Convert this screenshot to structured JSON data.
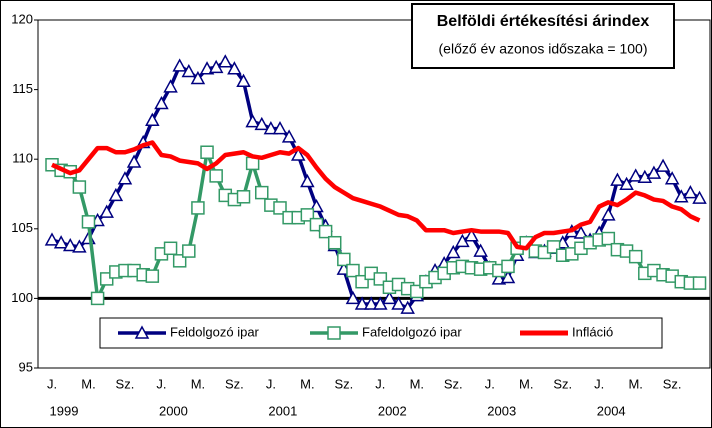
{
  "chart_data": {
    "type": "line",
    "title": "Belföldi értékesítési árindex",
    "subtitle": "(előző év azonos időszaka = 100)",
    "categories": [
      "J.",
      null,
      null,
      null,
      "M.",
      null,
      null,
      null,
      "Sz.",
      null,
      null,
      null,
      "J.",
      null,
      null,
      null,
      "M.",
      null,
      null,
      null,
      "Sz.",
      null,
      null,
      null,
      "J.",
      null,
      null,
      null,
      "M.",
      null,
      null,
      null,
      "Sz.",
      null,
      null,
      null,
      "J.",
      null,
      null,
      null,
      "M.",
      null,
      null,
      null,
      "Sz.",
      null,
      null,
      null,
      "J.",
      null,
      null,
      null,
      "M.",
      null,
      null,
      null,
      "Sz.",
      null,
      null,
      null,
      "J.",
      null,
      null,
      null,
      "M.",
      null,
      null,
      null,
      "Sz.",
      null,
      null,
      null
    ],
    "years": [
      "1999",
      "2000",
      "2001",
      "2002",
      "2003",
      "2004"
    ],
    "ylim": [
      95,
      120
    ],
    "yticks": [
      95,
      100,
      105,
      110,
      115,
      120
    ],
    "reference_line": 100,
    "series": [
      {
        "name": "Feldolgozó ipar",
        "color": "#000080",
        "marker": "triangle",
        "values": [
          104.2,
          104.0,
          103.8,
          103.7,
          104.3,
          105.6,
          106.2,
          107.4,
          108.6,
          109.8,
          111.2,
          112.8,
          114.0,
          115.2,
          116.7,
          116.3,
          115.8,
          116.5,
          116.6,
          117.0,
          116.5,
          115.6,
          112.7,
          112.5,
          112.2,
          112.2,
          111.6,
          110.3,
          108.4,
          106.6,
          105.2,
          103.8,
          102.1,
          100.0,
          99.6,
          99.6,
          99.6,
          100.0,
          99.6,
          99.3,
          100.2,
          101.2,
          102.0,
          102.5,
          103.3,
          104.1,
          104.5,
          103.4,
          102.2,
          101.4,
          101.5,
          103.1,
          104.0,
          103.3,
          103.4,
          103.6,
          104.0,
          104.8,
          104.7,
          104.2,
          104.7,
          106.0,
          108.5,
          108.2,
          108.8,
          108.7,
          109.0,
          109.5,
          108.6,
          107.3,
          107.6,
          107.2
        ]
      },
      {
        "name": "Fafeldolgozó ipar",
        "color": "#339966",
        "marker": "square",
        "values": [
          109.6,
          109.2,
          109.1,
          108.0,
          105.5,
          100.0,
          101.4,
          101.9,
          102.0,
          102.0,
          101.7,
          101.6,
          103.2,
          103.6,
          102.7,
          103.4,
          106.5,
          110.5,
          108.8,
          107.4,
          107.1,
          107.3,
          109.7,
          107.6,
          106.7,
          106.5,
          105.8,
          105.8,
          106.0,
          105.3,
          104.8,
          104.0,
          102.8,
          102.0,
          101.2,
          101.8,
          101.4,
          100.8,
          101.0,
          100.7,
          100.5,
          101.2,
          101.5,
          101.8,
          102.2,
          102.3,
          102.2,
          102.1,
          102.2,
          102.0,
          102.3,
          103.6,
          104.0,
          103.4,
          103.3,
          103.7,
          103.1,
          103.2,
          103.6,
          104.0,
          104.2,
          104.3,
          103.5,
          103.4,
          103.0,
          101.8,
          102.0,
          101.7,
          101.6,
          101.2,
          101.1,
          101.1
        ]
      },
      {
        "name": "Infláció",
        "color": "#ff0000",
        "marker": "none",
        "values": [
          109.6,
          109.3,
          109.0,
          109.2,
          110.0,
          110.8,
          110.8,
          110.5,
          110.5,
          110.7,
          111.0,
          111.2,
          110.3,
          110.2,
          109.9,
          109.8,
          109.7,
          109.3,
          109.7,
          110.3,
          110.4,
          110.5,
          110.2,
          110.1,
          110.3,
          110.5,
          110.4,
          110.8,
          110.3,
          109.4,
          108.6,
          108.0,
          107.6,
          107.2,
          107.0,
          106.8,
          106.6,
          106.3,
          106.0,
          105.9,
          105.6,
          104.9,
          104.9,
          104.9,
          104.7,
          104.8,
          104.9,
          104.8,
          104.8,
          104.8,
          104.7,
          103.7,
          103.6,
          104.4,
          104.7,
          104.7,
          104.8,
          104.9,
          105.3,
          105.5,
          106.6,
          106.9,
          106.7,
          107.1,
          107.6,
          107.4,
          107.1,
          107.0,
          106.6,
          106.4,
          105.9,
          105.6
        ]
      }
    ]
  }
}
